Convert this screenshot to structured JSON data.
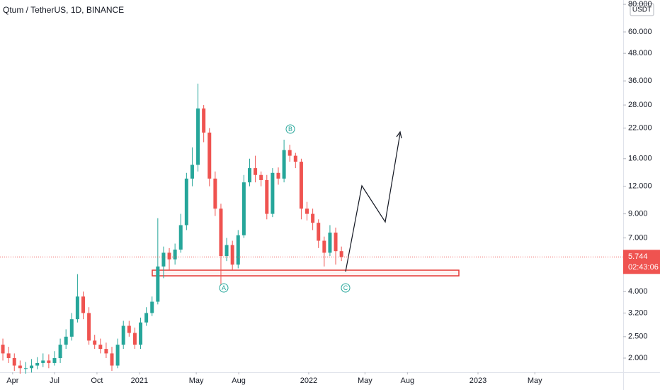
{
  "chart_data": {
    "type": "candlestick",
    "title": "Qtum / TetherUS, 1D, BINANCE",
    "currency": "USDT",
    "log_scale": true,
    "grid": false,
    "up_color": "#26a69a",
    "down_color": "#ef5350",
    "xlim": [
      0,
      108.6
    ],
    "xticks": [
      {
        "value": 2.2,
        "label": "Apr"
      },
      {
        "value": 9.5,
        "label": "Jul"
      },
      {
        "value": 16.9,
        "label": "Oct"
      },
      {
        "value": 24.3,
        "label": "2021"
      },
      {
        "value": 34.2,
        "label": "May"
      },
      {
        "value": 41.6,
        "label": "Aug"
      },
      {
        "value": 53.8,
        "label": "2022"
      },
      {
        "value": 63.6,
        "label": "May"
      },
      {
        "value": 71.0,
        "label": "Aug"
      },
      {
        "value": 83.3,
        "label": "2023"
      },
      {
        "value": 93.2,
        "label": "May"
      }
    ],
    "ylim": [
      1.725,
      83.7
    ],
    "yticks": [
      {
        "value": 80,
        "label": "80.000"
      },
      {
        "value": 60,
        "label": "60.000"
      },
      {
        "value": 48,
        "label": "48.000"
      },
      {
        "value": 36,
        "label": "36.000"
      },
      {
        "value": 28,
        "label": "28.000"
      },
      {
        "value": 22,
        "label": "22.000"
      },
      {
        "value": 16,
        "label": "16.000"
      },
      {
        "value": 12,
        "label": "12.000"
      },
      {
        "value": 9,
        "label": "9.000"
      },
      {
        "value": 7,
        "label": "7.000"
      },
      {
        "value": 4,
        "label": "4.000"
      },
      {
        "value": 3.2,
        "label": "3.200"
      },
      {
        "value": 2.5,
        "label": "2.500"
      },
      {
        "value": 2,
        "label": "2.000"
      }
    ],
    "open": [
      2.3,
      2.1,
      2.0,
      1.85,
      1.8,
      1.8,
      1.85,
      1.9,
      1.95,
      1.9,
      2.0,
      2.3,
      2.5,
      3.0,
      3.8,
      3.2,
      2.4,
      2.3,
      2.2,
      2.1,
      1.85,
      2.3,
      2.8,
      2.6,
      2.3,
      2.9,
      3.2,
      3.6,
      5.2,
      6.0,
      5.6,
      6.2,
      8.0,
      13.0,
      15.0,
      27.0,
      21.0,
      13.0,
      9.5,
      5.8,
      6.5,
      5.3,
      7.2,
      12.5,
      14.5,
      13.5,
      12.8,
      9.0,
      13.8,
      13.0,
      17.5,
      16.5,
      15.5,
      9.5,
      9.0,
      8.2,
      6.8,
      6.0,
      7.4,
      6.1
    ],
    "high": [
      2.45,
      2.25,
      2.1,
      1.95,
      1.92,
      1.98,
      2.02,
      2.1,
      2.08,
      2.15,
      2.45,
      2.7,
      3.2,
      4.8,
      4.0,
      3.4,
      2.55,
      2.45,
      2.35,
      2.25,
      2.45,
      2.95,
      2.95,
      2.75,
      3.05,
      3.4,
      3.8,
      8.6,
      6.4,
      6.3,
      6.6,
      9.0,
      13.8,
      18.0,
      35.0,
      28.0,
      22.0,
      14.0,
      10.0,
      7.0,
      6.8,
      7.6,
      13.5,
      16.0,
      16.5,
      14.0,
      13.5,
      14.5,
      14.6,
      19.5,
      18.5,
      17.0,
      16.0,
      10.2,
      9.5,
      8.5,
      7.1,
      8.0,
      7.8,
      6.4
    ],
    "low": [
      1.95,
      1.9,
      1.75,
      1.7,
      1.7,
      1.72,
      1.78,
      1.82,
      1.8,
      1.85,
      1.9,
      2.2,
      2.4,
      2.9,
      3.0,
      2.3,
      2.2,
      2.1,
      2.0,
      1.75,
      1.8,
      2.2,
      2.5,
      2.2,
      2.2,
      2.8,
      3.1,
      3.5,
      4.6,
      5.0,
      5.3,
      6.0,
      7.6,
      12.0,
      14.0,
      19.0,
      12.0,
      8.8,
      4.3,
      5.5,
      5.0,
      5.1,
      7.0,
      12.0,
      12.5,
      12.0,
      8.5,
      8.7,
      12.2,
      12.5,
      15.5,
      14.5,
      8.5,
      8.4,
      7.6,
      6.3,
      5.2,
      5.8,
      5.3,
      5.5
    ],
    "close": [
      2.1,
      2.0,
      1.85,
      1.8,
      1.8,
      1.85,
      1.9,
      1.95,
      1.9,
      2.0,
      2.3,
      2.5,
      3.0,
      3.8,
      3.2,
      2.4,
      2.3,
      2.2,
      2.1,
      1.85,
      2.3,
      2.8,
      2.6,
      2.3,
      2.9,
      3.2,
      3.6,
      5.2,
      6.0,
      5.6,
      6.2,
      8.0,
      13.0,
      15.0,
      27.0,
      21.0,
      13.0,
      9.5,
      5.8,
      6.5,
      5.3,
      7.2,
      12.5,
      14.5,
      13.5,
      12.8,
      9.0,
      13.8,
      13.0,
      17.5,
      16.5,
      15.5,
      9.5,
      9.0,
      8.2,
      6.8,
      6.0,
      7.4,
      6.1,
      5.744
    ],
    "last_price": 5.744,
    "countdown": "02:43:06",
    "annotations": [
      {
        "label": "A"
      },
      {
        "label": "B"
      },
      {
        "label": "C"
      }
    ]
  }
}
